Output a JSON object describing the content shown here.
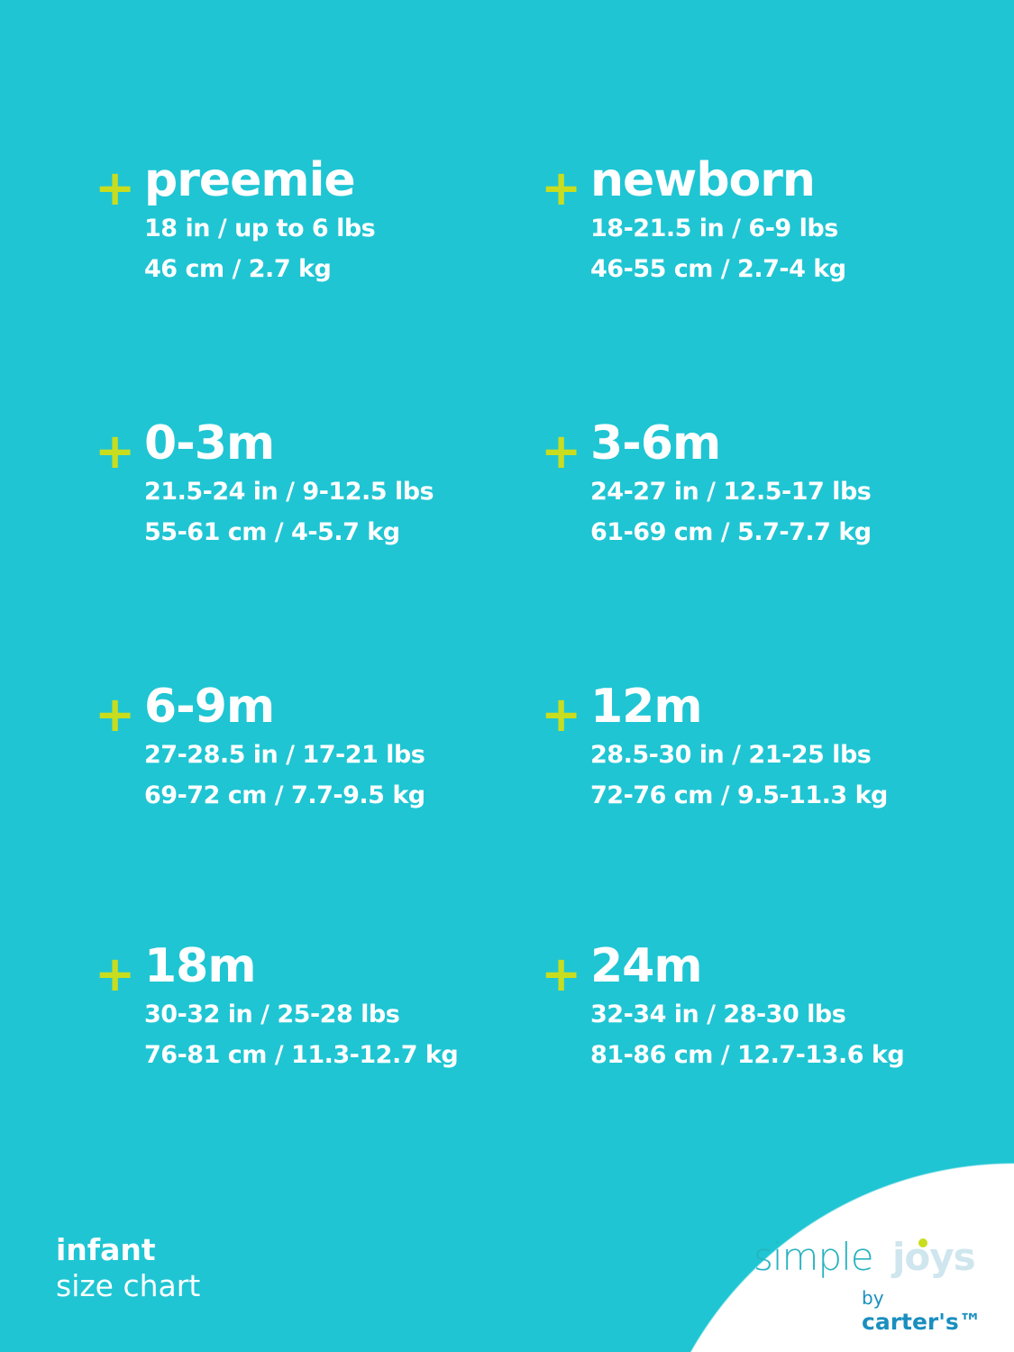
{
  "colors": {
    "background": "#1fc5d3",
    "plus": "#c9dd1f",
    "text": "#ffffff"
  },
  "sizes": [
    {
      "label": "preemie",
      "imperial": "18 in / up to 6 lbs",
      "metric": "46 cm / 2.7 kg"
    },
    {
      "label": "newborn",
      "imperial": "18-21.5 in / 6-9 lbs",
      "metric": "46-55 cm / 2.7-4 kg"
    },
    {
      "label": "0-3m",
      "imperial": "21.5-24 in / 9-12.5 lbs",
      "metric": "55-61 cm / 4-5.7 kg"
    },
    {
      "label": "3-6m",
      "imperial": "24-27 in / 12.5-17 lbs",
      "metric": "61-69 cm / 5.7-7.7 kg"
    },
    {
      "label": "6-9m",
      "imperial": "27-28.5 in / 17-21 lbs",
      "metric": "69-72 cm / 7.7-9.5 kg"
    },
    {
      "label": "12m",
      "imperial": "28.5-30 in / 21-25 lbs",
      "metric": "72-76 cm / 9.5-11.3 kg"
    },
    {
      "label": "18m",
      "imperial": "30-32 in / 25-28 lbs",
      "metric": "76-81 cm / 11.3-12.7 kg"
    },
    {
      "label": "24m",
      "imperial": "32-34 in / 28-30 lbs",
      "metric": "81-86 cm / 12.7-13.6 kg"
    }
  ],
  "plus_symbol": "+",
  "caption": {
    "bold": "infant",
    "regular": "size chart"
  },
  "logo": {
    "simple": "simple",
    "joys": "joys",
    "by": "by",
    "brand": "carter's™"
  }
}
